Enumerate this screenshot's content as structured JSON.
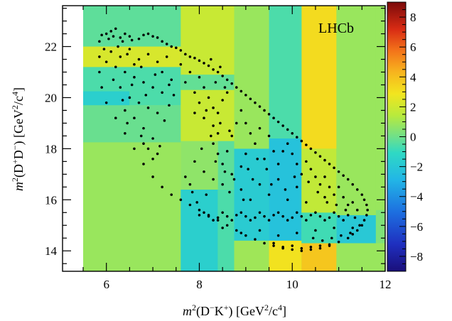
{
  "chart_data": {
    "type": "scatter",
    "title": "",
    "annotation": "LHCb",
    "xlabel": {
      "prefix": "m",
      "sup": "2",
      "body": "(D",
      "sup2": "−",
      "body2": "K",
      "sup3": "+",
      "body3": ") [GeV",
      "sup4": "2",
      "body4": "/c",
      "sup5": "4",
      "body5": "]"
    },
    "ylabel": {
      "prefix": "m",
      "sup": "2",
      "body": "(D",
      "sup2": "+",
      "body2": "D",
      "sup3": "−",
      "body3": ") [GeV",
      "sup4": "2",
      "body4": "/c",
      "sup5": "4",
      "body5": "]"
    },
    "xlim": [
      5.5,
      12.0
    ],
    "ylim": [
      13.2,
      23.6
    ],
    "xticks": [
      6,
      8,
      10,
      12
    ],
    "xtick_labels": [
      "6",
      "8",
      "10",
      "12"
    ],
    "yticks": [
      14,
      16,
      18,
      20,
      22
    ],
    "ytick_labels": [
      "14",
      "16",
      "18",
      "20",
      "22"
    ],
    "colorbar": {
      "range": [
        -9,
        9
      ],
      "ticks": [
        -8,
        -6,
        -4,
        -2,
        0,
        2,
        4,
        6,
        8
      ],
      "tick_labels": [
        "−8",
        "−6",
        "−4",
        "−2",
        "0",
        "2",
        "4",
        "6",
        "8"
      ]
    },
    "background_bins": [
      {
        "x": [
          5.5,
          12.0
        ],
        "y": [
          13.2,
          23.6
        ],
        "value": 0.8
      },
      {
        "x": [
          5.5,
          7.6
        ],
        "y": [
          13.2,
          18.25
        ],
        "value": 0.8
      },
      {
        "x": [
          7.6,
          8.4
        ],
        "y": [
          13.2,
          16.4
        ],
        "value": -1.6
      },
      {
        "x": [
          8.4,
          8.75
        ],
        "y": [
          13.2,
          16.4
        ],
        "value": -0.6
      },
      {
        "x": [
          8.75,
          9.5
        ],
        "y": [
          13.2,
          17.4
        ],
        "value": 0.9
      },
      {
        "x": [
          9.5,
          10.2
        ],
        "y": [
          13.2,
          14.4
        ],
        "value": 3.0
      },
      {
        "x": [
          10.2,
          10.95
        ],
        "y": [
          13.2,
          14.3
        ],
        "value": 3.8
      },
      {
        "x": [
          8.75,
          9.5
        ],
        "y": [
          14.4,
          18.0
        ],
        "value": -1.8
      },
      {
        "x": [
          9.5,
          10.2
        ],
        "y": [
          14.4,
          18.4
        ],
        "value": -2.3
      },
      {
        "x": [
          10.2,
          10.95
        ],
        "y": [
          14.3,
          15.5
        ],
        "value": -0.8
      },
      {
        "x": [
          10.2,
          10.95
        ],
        "y": [
          15.5,
          18.0
        ],
        "value": 1.6
      },
      {
        "x": [
          10.95,
          11.8
        ],
        "y": [
          14.3,
          15.4
        ],
        "value": -2.0
      },
      {
        "x": [
          11.8,
          12.0
        ],
        "y": [
          14.3,
          15.6
        ],
        "value": 0.3
      },
      {
        "x": [
          10.95,
          11.8
        ],
        "y": [
          15.4,
          23.6
        ],
        "value": 0.8
      },
      {
        "x": [
          10.2,
          10.95
        ],
        "y": [
          18.0,
          23.6
        ],
        "value": 3.2
      },
      {
        "x": [
          9.5,
          10.2
        ],
        "y": [
          18.4,
          23.6
        ],
        "value": -0.6
      },
      {
        "x": [
          8.75,
          9.5
        ],
        "y": [
          18.0,
          23.6
        ],
        "value": 0.8
      },
      {
        "x": [
          7.6,
          8.75
        ],
        "y": [
          16.4,
          23.6
        ],
        "value": 1.8
      },
      {
        "x": [
          7.6,
          8.4
        ],
        "y": [
          16.4,
          18.3
        ],
        "value": 0.6
      },
      {
        "x": [
          8.4,
          8.75
        ],
        "y": [
          16.4,
          18.3
        ],
        "value": -0.3
      },
      {
        "x": [
          5.5,
          7.6
        ],
        "y": [
          18.25,
          19.7
        ],
        "value": -0.1
      },
      {
        "x": [
          5.5,
          6.5
        ],
        "y": [
          19.7,
          20.25
        ],
        "value": -1.6
      },
      {
        "x": [
          6.5,
          7.6
        ],
        "y": [
          19.7,
          20.25
        ],
        "value": -0.6
      },
      {
        "x": [
          5.5,
          7.6
        ],
        "y": [
          20.25,
          21.2
        ],
        "value": -0.6
      },
      {
        "x": [
          5.5,
          7.6
        ],
        "y": [
          21.2,
          22.0
        ],
        "value": 2.2
      },
      {
        "x": [
          5.5,
          7.6
        ],
        "y": [
          22.0,
          23.6
        ],
        "value": -0.3
      },
      {
        "x": [
          7.6,
          8.75
        ],
        "y": [
          20.3,
          20.9
        ],
        "value": -0.2
      },
      {
        "x": [
          11.8,
          12.0
        ],
        "y": [
          15.6,
          23.6
        ],
        "value": 0.8
      }
    ],
    "data_points": [
      [
        5.9,
        22.45
      ],
      [
        6.0,
        22.5
      ],
      [
        6.1,
        22.6
      ],
      [
        6.2,
        22.7
      ],
      [
        6.05,
        22.3
      ],
      [
        5.85,
        22.2
      ],
      [
        6.15,
        22.4
      ],
      [
        6.3,
        22.35
      ],
      [
        6.4,
        22.5
      ],
      [
        6.5,
        22.4
      ],
      [
        6.35,
        22.2
      ],
      [
        6.55,
        22.25
      ],
      [
        6.7,
        22.3
      ],
      [
        6.8,
        22.45
      ],
      [
        6.9,
        22.5
      ],
      [
        7.0,
        22.4
      ],
      [
        7.1,
        22.35
      ],
      [
        7.2,
        22.2
      ],
      [
        7.3,
        22.1
      ],
      [
        7.4,
        22.0
      ],
      [
        7.5,
        21.95
      ],
      [
        7.6,
        21.85
      ],
      [
        7.7,
        21.7
      ],
      [
        7.8,
        21.6
      ],
      [
        7.9,
        21.55
      ],
      [
        8.0,
        21.45
      ],
      [
        8.1,
        21.35
      ],
      [
        8.2,
        21.25
      ],
      [
        8.3,
        21.1
      ],
      [
        8.4,
        21.0
      ],
      [
        8.5,
        20.85
      ],
      [
        8.6,
        20.7
      ],
      [
        8.7,
        20.55
      ],
      [
        8.8,
        20.4
      ],
      [
        8.9,
        20.25
      ],
      [
        9.0,
        20.1
      ],
      [
        9.1,
        19.95
      ],
      [
        9.2,
        19.8
      ],
      [
        9.3,
        19.65
      ],
      [
        9.4,
        19.5
      ],
      [
        9.5,
        19.35
      ],
      [
        9.6,
        19.2
      ],
      [
        9.7,
        19.05
      ],
      [
        9.8,
        18.9
      ],
      [
        9.9,
        18.75
      ],
      [
        10.0,
        18.6
      ],
      [
        10.1,
        18.45
      ],
      [
        10.2,
        18.3
      ],
      [
        10.3,
        18.15
      ],
      [
        10.4,
        18.0
      ],
      [
        10.5,
        17.85
      ],
      [
        10.6,
        17.7
      ],
      [
        10.7,
        17.55
      ],
      [
        10.8,
        17.4
      ],
      [
        10.9,
        17.25
      ],
      [
        11.0,
        17.1
      ],
      [
        11.1,
        16.95
      ],
      [
        11.2,
        16.8
      ],
      [
        11.3,
        16.6
      ],
      [
        11.4,
        16.4
      ],
      [
        11.5,
        16.2
      ],
      [
        11.55,
        16.0
      ],
      [
        11.6,
        15.8
      ],
      [
        11.62,
        15.6
      ],
      [
        11.6,
        15.4
      ],
      [
        11.55,
        15.2
      ],
      [
        11.5,
        15.0
      ],
      [
        11.4,
        14.8
      ],
      [
        11.3,
        14.65
      ],
      [
        11.2,
        14.5
      ],
      [
        11.0,
        14.35
      ],
      [
        10.8,
        14.2
      ],
      [
        10.6,
        14.1
      ],
      [
        10.4,
        14.05
      ],
      [
        10.2,
        14.0
      ],
      [
        10.0,
        14.05
      ],
      [
        9.8,
        14.1
      ],
      [
        9.6,
        14.2
      ],
      [
        9.4,
        14.3
      ],
      [
        9.2,
        14.45
      ],
      [
        9.0,
        14.6
      ],
      [
        8.8,
        14.8
      ],
      [
        8.6,
        15.0
      ],
      [
        8.4,
        15.2
      ],
      [
        8.2,
        15.4
      ],
      [
        8.0,
        15.6
      ],
      [
        7.8,
        15.8
      ],
      [
        7.6,
        16.0
      ],
      [
        7.4,
        16.2
      ],
      [
        7.2,
        16.5
      ],
      [
        7.0,
        16.9
      ],
      [
        6.8,
        17.4
      ],
      [
        6.6,
        18.0
      ],
      [
        6.4,
        18.6
      ],
      [
        6.2,
        19.2
      ],
      [
        6.0,
        19.8
      ],
      [
        5.9,
        20.4
      ],
      [
        5.85,
        21.0
      ],
      [
        5.85,
        21.6
      ],
      [
        6.1,
        21.8
      ],
      [
        6.3,
        21.6
      ],
      [
        6.5,
        21.9
      ],
      [
        6.7,
        21.5
      ],
      [
        6.9,
        21.7
      ],
      [
        7.1,
        21.4
      ],
      [
        7.3,
        21.6
      ],
      [
        6.2,
        21.2
      ],
      [
        6.4,
        21.0
      ],
      [
        6.6,
        20.8
      ],
      [
        6.8,
        20.6
      ],
      [
        7.0,
        20.4
      ],
      [
        7.2,
        20.2
      ],
      [
        6.3,
        20.4
      ],
      [
        6.5,
        20.0
      ],
      [
        6.7,
        19.8
      ],
      [
        6.9,
        19.6
      ],
      [
        7.1,
        19.4
      ],
      [
        6.4,
        19.5
      ],
      [
        6.6,
        19.2
      ],
      [
        6.8,
        18.8
      ],
      [
        7.0,
        18.4
      ],
      [
        6.9,
        18.0
      ],
      [
        7.1,
        17.8
      ],
      [
        6.8,
        18.2
      ],
      [
        7.0,
        17.6
      ],
      [
        7.6,
        21.3
      ],
      [
        7.8,
        21.0
      ],
      [
        7.7,
        20.6
      ],
      [
        7.9,
        20.2
      ],
      [
        8.0,
        20.8
      ],
      [
        8.1,
        20.4
      ],
      [
        8.2,
        20.0
      ],
      [
        8.3,
        19.6
      ],
      [
        8.0,
        19.8
      ],
      [
        7.9,
        19.4
      ],
      [
        8.1,
        19.2
      ],
      [
        8.3,
        18.9
      ],
      [
        8.4,
        19.4
      ],
      [
        8.5,
        19.9
      ],
      [
        8.6,
        20.2
      ],
      [
        8.4,
        18.6
      ],
      [
        8.3,
        18.2
      ],
      [
        8.4,
        17.8
      ],
      [
        8.5,
        17.4
      ],
      [
        8.6,
        17.9
      ],
      [
        8.7,
        18.5
      ],
      [
        8.8,
        19.0
      ],
      [
        8.9,
        19.5
      ],
      [
        9.0,
        19.0
      ],
      [
        9.1,
        18.6
      ],
      [
        9.2,
        18.2
      ],
      [
        9.0,
        17.8
      ],
      [
        8.9,
        17.3
      ],
      [
        8.7,
        17.0
      ],
      [
        8.5,
        16.6
      ],
      [
        8.3,
        16.8
      ],
      [
        8.1,
        17.1
      ],
      [
        7.9,
        17.5
      ],
      [
        7.8,
        16.6
      ],
      [
        7.7,
        16.9
      ],
      [
        9.3,
        18.8
      ],
      [
        9.5,
        18.5
      ],
      [
        9.6,
        17.9
      ],
      [
        9.4,
        17.6
      ],
      [
        9.7,
        17.4
      ],
      [
        9.8,
        17.9
      ],
      [
        9.9,
        18.2
      ],
      [
        10.0,
        17.8
      ],
      [
        10.1,
        17.4
      ],
      [
        10.2,
        17.0
      ],
      [
        10.3,
        17.5
      ],
      [
        10.4,
        17.2
      ],
      [
        10.5,
        16.9
      ],
      [
        10.6,
        16.6
      ],
      [
        10.7,
        16.9
      ],
      [
        10.8,
        16.5
      ],
      [
        10.9,
        16.2
      ],
      [
        11.0,
        16.5
      ],
      [
        11.1,
        16.1
      ],
      [
        11.2,
        15.8
      ],
      [
        11.3,
        15.9
      ],
      [
        11.4,
        15.6
      ],
      [
        8.0,
        15.4
      ],
      [
        8.2,
        15.35
      ],
      [
        8.4,
        15.3
      ],
      [
        8.6,
        15.35
      ],
      [
        8.8,
        15.4
      ],
      [
        9.0,
        15.35
      ],
      [
        9.2,
        15.3
      ],
      [
        9.4,
        15.35
      ],
      [
        9.6,
        15.4
      ],
      [
        9.8,
        15.35
      ],
      [
        10.0,
        15.3
      ],
      [
        10.2,
        15.35
      ],
      [
        10.4,
        15.4
      ],
      [
        10.6,
        15.35
      ],
      [
        10.8,
        15.3
      ],
      [
        11.0,
        15.35
      ],
      [
        11.2,
        15.4
      ],
      [
        8.1,
        15.5
      ],
      [
        8.5,
        15.5
      ],
      [
        8.9,
        15.5
      ],
      [
        9.3,
        15.5
      ],
      [
        9.7,
        15.5
      ],
      [
        10.1,
        15.5
      ],
      [
        10.5,
        15.5
      ],
      [
        10.9,
        15.5
      ],
      [
        8.3,
        15.2
      ],
      [
        8.7,
        15.2
      ],
      [
        9.1,
        15.2
      ],
      [
        9.5,
        15.2
      ],
      [
        9.9,
        15.2
      ],
      [
        10.3,
        15.2
      ],
      [
        10.7,
        15.2
      ],
      [
        11.1,
        15.2
      ],
      [
        8.5,
        14.9
      ],
      [
        8.9,
        14.7
      ],
      [
        9.3,
        14.8
      ],
      [
        9.7,
        14.6
      ],
      [
        10.1,
        14.7
      ],
      [
        10.5,
        14.8
      ],
      [
        10.9,
        14.9
      ],
      [
        11.3,
        14.9
      ],
      [
        9.1,
        16.0
      ],
      [
        9.5,
        16.2
      ],
      [
        9.9,
        16.0
      ],
      [
        10.3,
        15.9
      ],
      [
        10.7,
        16.1
      ],
      [
        9.3,
        16.6
      ],
      [
        9.7,
        16.8
      ],
      [
        10.1,
        16.5
      ],
      [
        8.9,
        16.4
      ],
      [
        9.6,
        14.3
      ],
      [
        10.0,
        14.2
      ],
      [
        10.4,
        14.15
      ],
      [
        10.8,
        14.25
      ],
      [
        9.8,
        14.15
      ],
      [
        10.2,
        14.1
      ],
      [
        10.6,
        14.2
      ],
      [
        6.6,
        21.3
      ],
      [
        7.2,
        21.0
      ],
      [
        7.4,
        20.7
      ],
      [
        6.0,
        21.4
      ],
      [
        5.95,
        21.9
      ],
      [
        6.25,
        22.0
      ],
      [
        6.45,
        21.7
      ],
      [
        6.75,
        21.2
      ],
      [
        7.05,
        20.9
      ],
      [
        7.35,
        20.5
      ],
      [
        6.55,
        20.5
      ],
      [
        6.85,
        20.1
      ],
      [
        6.15,
        20.7
      ],
      [
        6.35,
        19.9
      ],
      [
        6.45,
        19.0
      ],
      [
        6.75,
        18.5
      ],
      [
        7.15,
        18.1
      ],
      [
        7.25,
        19.1
      ],
      [
        7.35,
        19.7
      ],
      [
        7.45,
        20.1
      ],
      [
        8.25,
        21.5
      ],
      [
        8.45,
        21.2
      ],
      [
        8.35,
        20.6
      ],
      [
        8.55,
        20.4
      ],
      [
        8.15,
        19.5
      ],
      [
        8.45,
        19.0
      ],
      [
        8.65,
        18.7
      ],
      [
        8.25,
        18.5
      ],
      [
        8.05,
        18.0
      ],
      [
        8.35,
        17.5
      ],
      [
        8.55,
        17.1
      ],
      [
        8.75,
        16.8
      ],
      [
        8.15,
        16.2
      ],
      [
        7.95,
        15.9
      ],
      [
        7.85,
        16.3
      ],
      [
        8.65,
        16.3
      ],
      [
        8.95,
        16.0
      ],
      [
        9.15,
        16.8
      ],
      [
        9.05,
        17.2
      ],
      [
        9.25,
        17.6
      ],
      [
        9.45,
        17.2
      ],
      [
        9.55,
        16.6
      ],
      [
        9.85,
        16.4
      ],
      [
        10.05,
        16.9
      ],
      [
        10.35,
        16.7
      ],
      [
        10.55,
        16.3
      ],
      [
        10.75,
        15.9
      ],
      [
        10.95,
        15.8
      ],
      [
        11.15,
        15.6
      ],
      [
        11.35,
        15.3
      ],
      [
        11.45,
        15.0
      ],
      [
        11.25,
        14.7
      ],
      [
        11.05,
        14.6
      ],
      [
        10.85,
        14.5
      ],
      [
        10.65,
        14.4
      ],
      [
        10.45,
        14.5
      ]
    ]
  }
}
